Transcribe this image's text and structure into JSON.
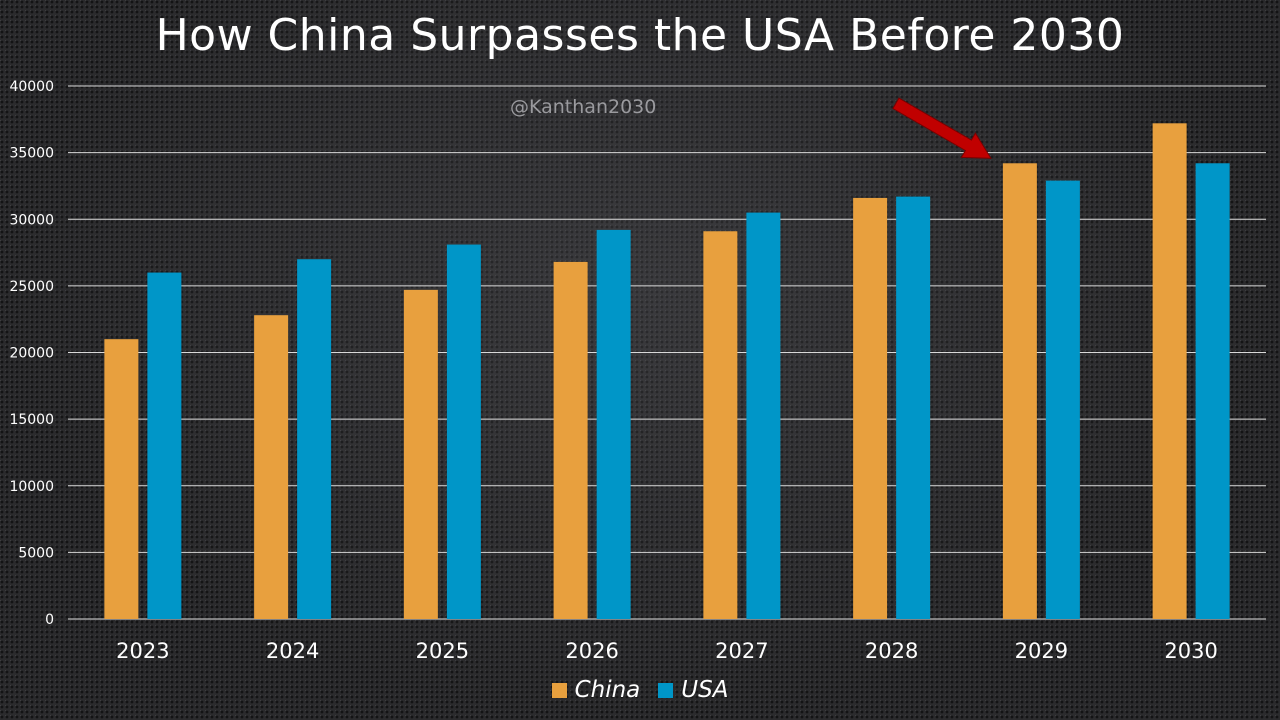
{
  "chart_data": {
    "type": "bar",
    "title": "How China Surpasses the USA Before 2030",
    "watermark": "@Kanthan2030",
    "categories": [
      "2023",
      "2024",
      "2025",
      "2026",
      "2027",
      "2028",
      "2029",
      "2030"
    ],
    "series": [
      {
        "name": "China",
        "color": "#e8a03e",
        "values": [
          21000,
          22800,
          24700,
          26800,
          29100,
          31600,
          34200,
          37200
        ]
      },
      {
        "name": "USA",
        "color": "#0096c8",
        "values": [
          26000,
          27000,
          28100,
          29200,
          30500,
          31700,
          32900,
          34200
        ]
      }
    ],
    "yticks": [
      "0",
      "5000",
      "10000",
      "15000",
      "20000",
      "25000",
      "30000",
      "35000",
      "40000"
    ],
    "ylim": [
      0,
      40000
    ],
    "grid": true,
    "legend_position": "bottom",
    "annotation": {
      "type": "arrow",
      "color": "#c00000",
      "points_to": "2029 China"
    }
  }
}
